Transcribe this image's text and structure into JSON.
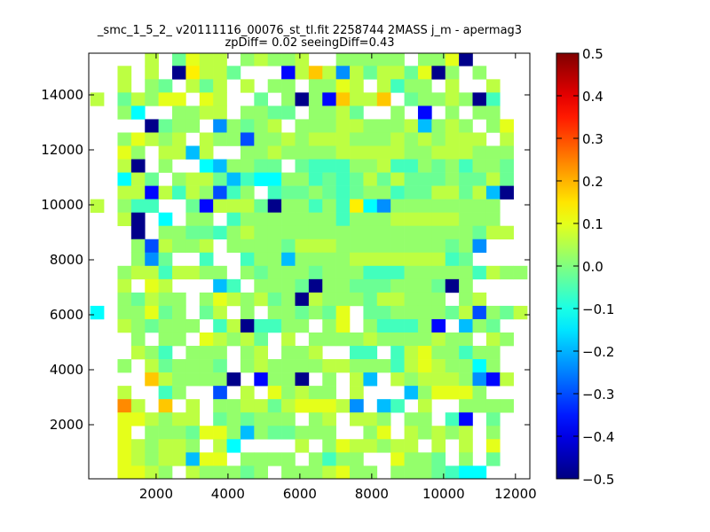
{
  "chart_data": {
    "type": "heatmap",
    "title_line1": "_smc_1_5_2_ v20111116_00076_st_tl.fit 2258744 2MASS j_m - apermag3",
    "title_line2": "zpDiff= 0.02 seeingDiff=0.43",
    "xlabel": "",
    "ylabel": "",
    "xlim": [
      125,
      12400
    ],
    "ylim": [
      32,
      15516
    ],
    "x_ticks": [
      2000,
      4000,
      6000,
      8000,
      10000,
      12000
    ],
    "x_tick_labels": [
      "2000",
      "4000",
      "6000",
      "8000",
      "10000",
      "12000"
    ],
    "y_ticks": [
      2000,
      4000,
      6000,
      8000,
      10000,
      12000,
      14000
    ],
    "y_tick_labels": [
      "2000",
      "4000",
      "6000",
      "8000",
      "10000",
      "12000",
      "14000"
    ],
    "bins": {
      "x_start": 167,
      "x_step": 380,
      "y_top": 15540,
      "y_step": 485
    },
    "colormap": "jet",
    "color_range": [
      -0.5,
      0.5
    ],
    "colorbar_ticks": [
      0.5,
      0.4,
      0.3,
      0.2,
      0.1,
      0.0,
      -0.1,
      -0.2,
      -0.3,
      -0.4,
      -0.5
    ],
    "colorbar_tick_labels": [
      "0.5",
      "0.4",
      "0.3",
      "0.2",
      "0.1",
      "0.0",
      "−0.1",
      "−0.2",
      "−0.3",
      "−0.4",
      "−0.5"
    ],
    "cell_codes": {
      "R": 0.24,
      "O": 0.18,
      "y": 0.14,
      "Y": 0.1,
      "L": 0.06,
      "G": 0.02,
      "M": -0.02,
      "T": -0.06,
      "C": -0.125,
      "S": -0.19,
      "A": -0.235,
      "B": -0.3,
      "b": -0.37,
      "N": -0.49
    },
    "grid_rows_top_to_bottom": [
      "....L.MYLL.GLGGL..GGGGG.GGYN....",
      "..L.L.NyLLM...bLOLALMLLMYNG.G...",
      "..L.GM.LML.L.GG.GGYL.LTGG.L..L..",
      "L.MLGYY.YL..M.GNGbOLLO.MGGLGNT..",
      "..GC..GGLL.GGMM.GGLM..G.b.G.GG..",
      "....NMGG.AGMGL.GGGLLGGGLSGLG.GY.",
      "..GYLGL.LGGBGGLGLLLGGGLGLGLLL.L.",
      "..YG.LLSL..GGLGGGGLLLLLGGLLLGGG.",
      "..LN.G..CSGGMM.MTTTGGLTTGMGTGGM.",
      "..CLM.GLLMSTCCGGTMTMLMLMMMGMMLM.",
      "..LLbLTLGBTG.TMMGMTMGGTMMLLMLSN.",
      "L.GTT..MbLLLMNGGTGTyCAGGGGGGGG..",
      "..LN.C.GG.TGGGGGGGTGGGLLLLLGGG..",
      "...N.GGMMTGLGGGGGGGGGGGGGGGGMLL.",
      "...GBLGGL.GGGGMLLLGGGGGGGGMGA...",
      "...GAM..T..TGGSGGGGLLLLLLLTM....",
      "..GLLTLLGG.GMGGGMGGGTTTGGGGGTLGG",
      "..L.YL...ST.GGGMNGGMMMGGGMNG....",
      "..GMLGG.GYLGLMGNLGGGMLLGGG.GL...",
      "C.GGYMG.ML.G.GGMGMY.MMGGGGMLBGML",
      "..LGMGGG.TLNTTGG.GY.GTTTGb.SGM..",
      "...G.GG.YLGLM.L.GGGGLGGGGLGG.LG.",
      "...LGT.GGG.GL.GGL..TT.TLYGGTGG..",
      "..G.LMGGGM.GLGGGGLLGGGTLYLGGCG..",
      "....OLGGGGN.bGGN.G.LS.LGLLLGAbL.",
      "..L..TG..B.L.YGLGG.L...SGYYYG...",
      "..RL.O.L.GGLLMLYYYLA.ST.L..GGGG.",
      "..YYLGLL.MGMGGG.GL.LLG.GG.Tb.M..",
      "..Y.GGGMYYGSGMMGGG..GY.LGLGL.G..",
      "..YLGLLG.LC....L.GYLLGLL.L.L.Y..",
      "..YLGLLSYY.GGGG.GTGG..YGGM.G.M..",
      "..YYLG.LGGGMG.GGGLYGG.GGGMTCC..."
    ]
  }
}
